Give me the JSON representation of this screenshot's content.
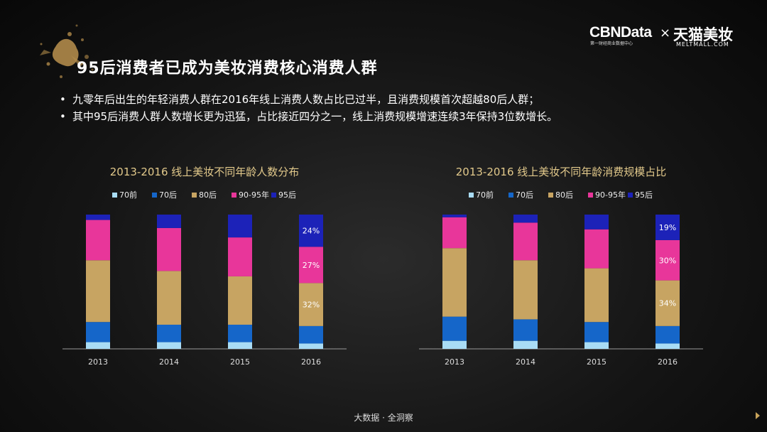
{
  "title": "95后消费者已成为美妆消费核心消费人群",
  "bullets": [
    "九零年后出生的年轻消费人群在2016年线上消费人数占比已过半，且消费规模首次超越80后人群；",
    "其中95后消费人群人数增长更为迅猛，占比接近四分之一，线上消费规模增速连续3年保持3位数增长。"
  ],
  "bullet_marker": "•",
  "logo": {
    "cbn": "CBNData",
    "cbn_sub": "第一财经商业数据中心",
    "times": "×",
    "tmall": "天猫美妆",
    "tmall_sub": "MELTMALL.COM"
  },
  "footer": "大数据 · 全洞察",
  "colors": {
    "s70qian": "#a9dcf5",
    "s70hou": "#1566c9",
    "s80hou": "#c7a462",
    "s9095": "#e8369a",
    "s95hou": "#1c22b8",
    "title_gold": "#e2c98b"
  },
  "chart_data": [
    {
      "type": "bar",
      "stacked": true,
      "title": "2013-2016 线上美妆不同年龄人数分布",
      "categories": [
        "2013",
        "2014",
        "2015",
        "2016"
      ],
      "series": [
        {
          "name": "70前",
          "values": [
            5,
            5,
            5,
            4
          ]
        },
        {
          "name": "70后",
          "values": [
            15,
            13,
            13,
            13
          ]
        },
        {
          "name": "80后",
          "values": [
            46,
            40,
            36,
            32
          ]
        },
        {
          "name": "90-95年",
          "values": [
            30,
            32,
            29,
            27
          ]
        },
        {
          "name": "95后",
          "values": [
            4,
            10,
            17,
            24
          ]
        }
      ],
      "labels": {
        "2016": [
          "",
          "",
          "32%",
          "27%",
          "24%"
        ]
      },
      "ylim": [
        0,
        100
      ]
    },
    {
      "type": "bar",
      "stacked": true,
      "title": "2013-2016 线上美妆不同年龄消费规模占比",
      "categories": [
        "2013",
        "2014",
        "2015",
        "2016"
      ],
      "series": [
        {
          "name": "70前",
          "values": [
            6,
            6,
            5,
            4
          ]
        },
        {
          "name": "70后",
          "values": [
            18,
            16,
            15,
            13
          ]
        },
        {
          "name": "80后",
          "values": [
            51,
            44,
            40,
            34
          ]
        },
        {
          "name": "90-95年",
          "values": [
            23,
            28,
            29,
            30
          ]
        },
        {
          "name": "95后",
          "values": [
            2,
            6,
            11,
            19
          ]
        }
      ],
      "labels": {
        "2016": [
          "",
          "",
          "34%",
          "30%",
          "19%"
        ]
      },
      "ylim": [
        0,
        100
      ]
    }
  ]
}
